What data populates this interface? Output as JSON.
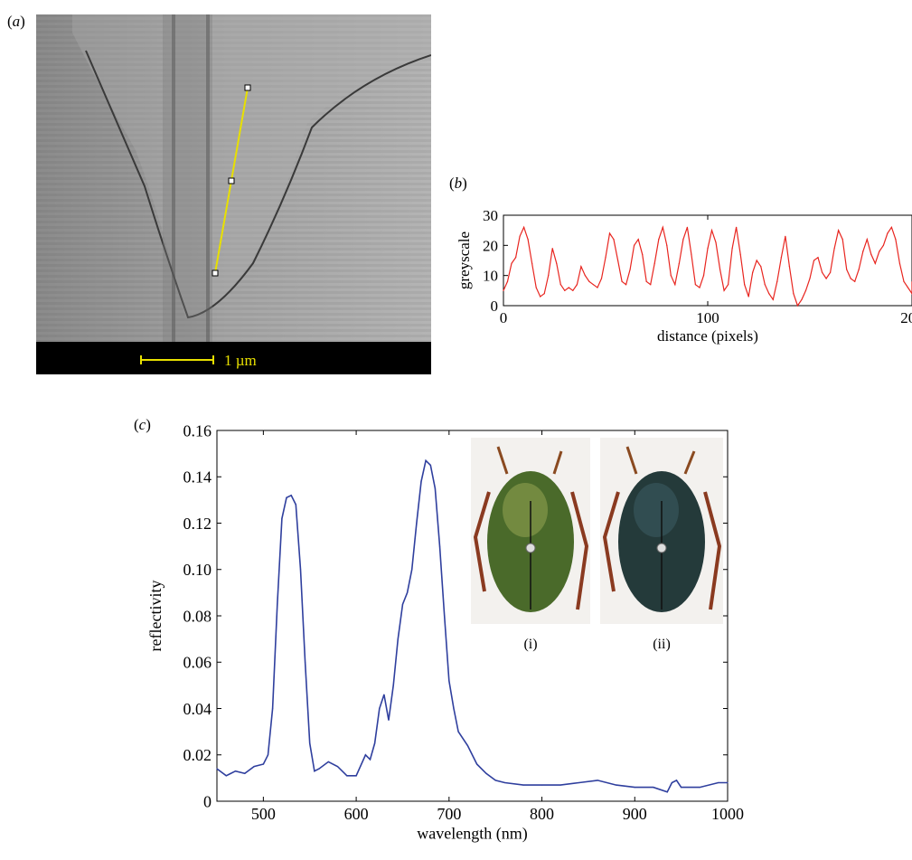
{
  "panel_a": {
    "label": "a",
    "scale_bar_label": "1 µm"
  },
  "chart_data": [
    {
      "panel": "b",
      "type": "line",
      "xlabel": "distance (pixels)",
      "ylabel": "greyscale",
      "xlim": [
        0,
        200
      ],
      "ylim": [
        0,
        30
      ],
      "xticks": [
        0,
        100,
        200
      ],
      "yticks": [
        0,
        10,
        20,
        30
      ],
      "series_color": "#e8251f",
      "x": [
        0,
        2,
        4,
        6,
        8,
        10,
        12,
        14,
        16,
        18,
        20,
        22,
        24,
        26,
        28,
        30,
        32,
        34,
        36,
        38,
        40,
        42,
        44,
        46,
        48,
        50,
        52,
        54,
        56,
        58,
        60,
        62,
        64,
        66,
        68,
        70,
        72,
        74,
        76,
        78,
        80,
        82,
        84,
        86,
        88,
        90,
        92,
        94,
        96,
        98,
        100,
        102,
        104,
        106,
        108,
        110,
        112,
        114,
        116,
        118,
        120,
        122,
        124,
        126,
        128,
        130,
        132,
        134,
        136,
        138,
        140,
        142,
        144,
        146,
        148,
        150,
        152,
        154,
        156,
        158,
        160,
        162,
        164,
        166,
        168,
        170,
        172,
        174,
        176,
        178,
        180,
        182,
        184,
        186,
        188,
        190,
        192,
        194,
        196,
        198,
        200,
        202
      ],
      "values": [
        5,
        8,
        14,
        16,
        23,
        26,
        22,
        14,
        6,
        3,
        4,
        10,
        19,
        14,
        7,
        5,
        6,
        5,
        7,
        13,
        10,
        8,
        7,
        6,
        9,
        16,
        24,
        22,
        15,
        8,
        7,
        12,
        20,
        22,
        17,
        8,
        7,
        14,
        22,
        26,
        20,
        10,
        7,
        14,
        22,
        26,
        17,
        7,
        6,
        10,
        19,
        25,
        21,
        12,
        5,
        7,
        19,
        26,
        17,
        7,
        3,
        11,
        15,
        13,
        7,
        4,
        2,
        8,
        16,
        23,
        13,
        4,
        0,
        2,
        5,
        9,
        15,
        16,
        11,
        9,
        11,
        19,
        25,
        22,
        12,
        9,
        8,
        12,
        18,
        22,
        17,
        14,
        18,
        20,
        24,
        26,
        22,
        14,
        8,
        6,
        4,
        8
      ]
    },
    {
      "panel": "c",
      "type": "line",
      "xlabel": "wavelength (nm)",
      "ylabel": "reflectivity",
      "xlim": [
        450,
        1000
      ],
      "ylim": [
        0,
        0.16
      ],
      "xticks": [
        500,
        600,
        700,
        800,
        900,
        1000
      ],
      "yticks": [
        0,
        0.02,
        0.04,
        0.06,
        0.08,
        0.1,
        0.12,
        0.14,
        0.16
      ],
      "ytick_labels": [
        "0",
        "0.02",
        "0.04",
        "0.06",
        "0.08",
        "0.10",
        "0.12",
        "0.14",
        "0.16"
      ],
      "series_color": "#2f3f9e",
      "x": [
        450,
        460,
        470,
        480,
        490,
        500,
        505,
        510,
        515,
        520,
        525,
        530,
        535,
        540,
        545,
        550,
        555,
        560,
        570,
        580,
        590,
        600,
        610,
        615,
        620,
        625,
        630,
        635,
        640,
        645,
        650,
        655,
        660,
        665,
        670,
        675,
        680,
        685,
        690,
        695,
        700,
        705,
        710,
        720,
        730,
        740,
        750,
        760,
        780,
        800,
        820,
        840,
        860,
        880,
        900,
        920,
        935,
        940,
        945,
        950,
        970,
        990,
        1000
      ],
      "values": [
        0.014,
        0.011,
        0.013,
        0.012,
        0.015,
        0.016,
        0.02,
        0.04,
        0.085,
        0.122,
        0.131,
        0.132,
        0.128,
        0.1,
        0.06,
        0.025,
        0.013,
        0.014,
        0.017,
        0.015,
        0.011,
        0.011,
        0.02,
        0.018,
        0.025,
        0.04,
        0.046,
        0.035,
        0.05,
        0.07,
        0.085,
        0.09,
        0.1,
        0.12,
        0.138,
        0.147,
        0.145,
        0.135,
        0.11,
        0.08,
        0.052,
        0.04,
        0.03,
        0.024,
        0.016,
        0.012,
        0.009,
        0.008,
        0.007,
        0.007,
        0.007,
        0.008,
        0.009,
        0.007,
        0.006,
        0.006,
        0.004,
        0.008,
        0.009,
        0.006,
        0.006,
        0.008,
        0.008
      ]
    }
  ],
  "panel_b": {
    "label": "b"
  },
  "panel_c": {
    "label": "c",
    "insets": [
      {
        "caption": "(i)",
        "shell_color": "#4a6a2a",
        "sheen_color": "#8fa050"
      },
      {
        "caption": "(ii)",
        "shell_color": "#243a3a",
        "sheen_color": "#3a5a60"
      }
    ]
  }
}
